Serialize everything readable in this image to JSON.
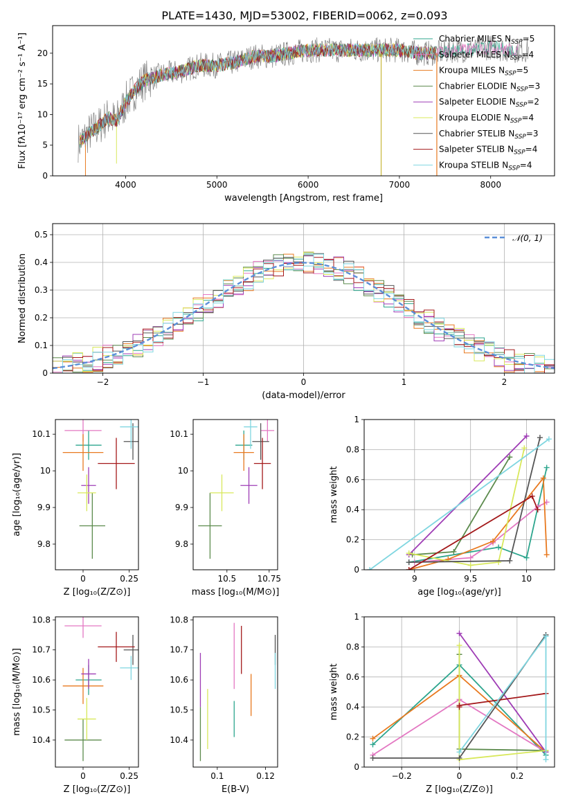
{
  "title": "PLATE=1430, MJD=53002, FIBERID=0062, z=0.093",
  "models": [
    {
      "name": "Chabrier MILES",
      "nssp": "5",
      "color": "#2ca58d"
    },
    {
      "name": "Salpeter MILES",
      "nssp": "4",
      "color": "#e377c2"
    },
    {
      "name": "Kroupa MILES",
      "nssp": "5",
      "color": "#e8791f"
    },
    {
      "name": "Chabrier ELODIE",
      "nssp": "3",
      "color": "#5b8a4c"
    },
    {
      "name": "Salpeter ELODIE",
      "nssp": "2",
      "color": "#9e3bb5"
    },
    {
      "name": "Kroupa ELODIE",
      "nssp": "4",
      "color": "#d8e85a"
    },
    {
      "name": "Chabrier STELIB",
      "nssp": "3",
      "color": "#555555"
    },
    {
      "name": "Salpeter STELIB",
      "nssp": "4",
      "color": "#a3181a"
    },
    {
      "name": "Kroupa STELIB",
      "nssp": "4",
      "color": "#7fd6e0"
    }
  ],
  "nssp_prefix": "N",
  "nssp_sub": "SSP",
  "chart_data": [
    {
      "id": "spectrum",
      "type": "line",
      "xlabel": "wavelength [Angstrom, rest frame]",
      "ylabel": "Flux [fλ10⁻¹⁷ erg cm⁻² s⁻¹ A⁻¹]",
      "xlim": [
        3200,
        8700
      ],
      "ylim": [
        0,
        24.5
      ],
      "xticks": [
        4000,
        5000,
        6000,
        7000,
        8000
      ],
      "yticks": [
        0,
        5,
        10,
        15,
        20
      ],
      "continuum": {
        "x": [
          3500,
          3600,
          3700,
          3800,
          3900,
          4000,
          4100,
          4200,
          4300,
          4400,
          4600,
          4800,
          5000,
          5200,
          5400,
          5600,
          5800,
          6000,
          6200,
          6400,
          6600,
          6800,
          7000,
          7200,
          7400,
          7600,
          7800,
          8000,
          8200,
          8400
        ],
        "y": [
          5.5,
          7,
          8,
          9.5,
          9,
          12,
          14,
          15.5,
          16,
          16.5,
          17,
          18,
          18,
          18.5,
          19.5,
          19.5,
          20,
          20.5,
          20.5,
          20.5,
          20.5,
          20.5,
          20.5,
          20,
          20,
          20.5,
          20.5,
          21,
          20.5,
          20.5
        ]
      }
    },
    {
      "id": "residuals",
      "type": "histogram",
      "xlabel": "(data-model)/error",
      "ylabel": "Normed distribution",
      "xlim": [
        -2.5,
        2.5
      ],
      "ylim": [
        0,
        0.54
      ],
      "xticks": [
        -2,
        -1,
        0,
        1,
        2
      ],
      "yticks": [
        0,
        0.1,
        0.2,
        0.3,
        0.4,
        0.5
      ],
      "legend": "𝒩(0, 1)",
      "legend_position": "top-right",
      "grid": true
    },
    {
      "id": "age-vs-Z",
      "type": "errorbar",
      "xlabel": "Z [log₁₀(Z/Z⊙)]",
      "ylabel": "age  [log₁₀(age/yr)]",
      "xlim": [
        -0.15,
        0.3
      ],
      "ylim": [
        9.73,
        10.14
      ],
      "xticks": [
        0,
        0.25
      ],
      "yticks": [
        9.8,
        9.9,
        10,
        10.1
      ],
      "points": [
        {
          "model": 0,
          "x": 0.03,
          "xerr": 0.07,
          "y": 10.07,
          "yerr": 0.04
        },
        {
          "model": 1,
          "x": 0.0,
          "xerr": 0.1,
          "y": 10.11,
          "yerr": 0.03
        },
        {
          "model": 2,
          "x": 0.0,
          "xerr": 0.11,
          "y": 10.05,
          "yerr": 0.05
        },
        {
          "model": 3,
          "x": 0.05,
          "xerr": 0.07,
          "y": 9.85,
          "yerr": 0.09
        },
        {
          "model": 4,
          "x": 0.03,
          "xerr": 0.04,
          "y": 9.96,
          "yerr": 0.05
        },
        {
          "model": 5,
          "x": 0.02,
          "xerr": 0.05,
          "y": 9.94,
          "yerr": 0.05
        },
        {
          "model": 6,
          "x": 0.27,
          "xerr": 0.05,
          "y": 10.08,
          "yerr": 0.05
        },
        {
          "model": 7,
          "x": 0.18,
          "xerr": 0.1,
          "y": 10.02,
          "yerr": 0.07
        },
        {
          "model": 8,
          "x": 0.26,
          "xerr": 0.06,
          "y": 10.12,
          "yerr": 0.06
        }
      ]
    },
    {
      "id": "age-vs-mass",
      "type": "errorbar",
      "xlabel": "mass [log₁₀(M/M⊙)]",
      "ylabel": "",
      "xlim": [
        10.3,
        10.8
      ],
      "ylim": [
        9.73,
        10.14
      ],
      "xticks": [
        10.5,
        10.75
      ],
      "yticks": [
        9.8,
        9.9,
        10,
        10.1
      ],
      "points": [
        {
          "model": 0,
          "x": 10.6,
          "xerr": 0.05,
          "y": 10.07,
          "yerr": 0.04
        },
        {
          "model": 1,
          "x": 10.74,
          "xerr": 0.04,
          "y": 10.11,
          "yerr": 0.03
        },
        {
          "model": 2,
          "x": 10.6,
          "xerr": 0.06,
          "y": 10.05,
          "yerr": 0.05
        },
        {
          "model": 3,
          "x": 10.4,
          "xerr": 0.07,
          "y": 9.85,
          "yerr": 0.09
        },
        {
          "model": 4,
          "x": 10.63,
          "xerr": 0.05,
          "y": 9.96,
          "yerr": 0.05
        },
        {
          "model": 5,
          "x": 10.47,
          "xerr": 0.07,
          "y": 9.94,
          "yerr": 0.05
        },
        {
          "model": 6,
          "x": 10.7,
          "xerr": 0.05,
          "y": 10.08,
          "yerr": 0.05
        },
        {
          "model": 7,
          "x": 10.71,
          "xerr": 0.05,
          "y": 10.02,
          "yerr": 0.07
        },
        {
          "model": 8,
          "x": 10.64,
          "xerr": 0.04,
          "y": 10.12,
          "yerr": 0.06
        }
      ]
    },
    {
      "id": "weight-vs-age",
      "type": "line",
      "xlabel": "age  [log₁₀(age/yr)]",
      "ylabel": "mass weight",
      "xlim": [
        8.55,
        10.25
      ],
      "ylim": [
        0,
        1
      ],
      "xticks": [
        9,
        9.5,
        10
      ],
      "yticks": [
        0,
        0.2,
        0.4,
        0.6,
        0.8,
        1
      ],
      "grid": true,
      "series": [
        {
          "model": 0,
          "x": [
            8.95,
            9.75,
            10.0,
            10.18
          ],
          "y": [
            0.05,
            0.15,
            0.08,
            0.68
          ]
        },
        {
          "model": 1,
          "x": [
            9.0,
            9.5,
            9.7,
            10.1,
            10.18
          ],
          "y": [
            0.05,
            0.08,
            0.18,
            0.42,
            0.45
          ]
        },
        {
          "model": 2,
          "x": [
            8.95,
            9.3,
            9.7,
            10.15,
            10.18
          ],
          "y": [
            0.0,
            0.07,
            0.19,
            0.61,
            0.1
          ]
        },
        {
          "model": 3,
          "x": [
            8.98,
            9.35,
            9.85
          ],
          "y": [
            0.1,
            0.12,
            0.75
          ]
        },
        {
          "model": 4,
          "x": [
            8.95,
            10.0
          ],
          "y": [
            0.1,
            0.89
          ]
        },
        {
          "model": 5,
          "x": [
            8.95,
            9.5,
            9.75,
            9.98
          ],
          "y": [
            0.11,
            0.03,
            0.05,
            0.81
          ]
        },
        {
          "model": 6,
          "x": [
            8.95,
            9.85,
            10.12
          ],
          "y": [
            0.05,
            0.06,
            0.88
          ]
        },
        {
          "model": 7,
          "x": [
            8.95,
            10.05,
            10.1
          ],
          "y": [
            0.0,
            0.49,
            0.4
          ]
        },
        {
          "model": 8,
          "x": [
            8.6,
            10.2
          ],
          "y": [
            0.0,
            0.87
          ]
        }
      ]
    },
    {
      "id": "mass-vs-Z",
      "type": "errorbar",
      "xlabel": "Z [log₁₀(Z/Z⊙)]",
      "ylabel": "mass [log₁₀(M/M⊙)]",
      "xlim": [
        -0.15,
        0.3
      ],
      "ylim": [
        10.31,
        10.81
      ],
      "xticks": [
        0,
        0.25
      ],
      "yticks": [
        10.4,
        10.5,
        10.6,
        10.7,
        10.8
      ],
      "points": [
        {
          "model": 0,
          "x": 0.03,
          "xerr": 0.07,
          "y": 10.6,
          "yerr": 0.05
        },
        {
          "model": 1,
          "x": 0.0,
          "xerr": 0.1,
          "y": 10.78,
          "yerr": 0.04
        },
        {
          "model": 2,
          "x": 0.0,
          "xerr": 0.11,
          "y": 10.58,
          "yerr": 0.06
        },
        {
          "model": 3,
          "x": 0.0,
          "xerr": 0.1,
          "y": 10.4,
          "yerr": 0.07
        },
        {
          "model": 4,
          "x": 0.03,
          "xerr": 0.04,
          "y": 10.62,
          "yerr": 0.05
        },
        {
          "model": 5,
          "x": 0.02,
          "xerr": 0.05,
          "y": 10.47,
          "yerr": 0.07
        },
        {
          "model": 6,
          "x": 0.27,
          "xerr": 0.05,
          "y": 10.7,
          "yerr": 0.05
        },
        {
          "model": 7,
          "x": 0.18,
          "xerr": 0.1,
          "y": 10.71,
          "yerr": 0.05
        },
        {
          "model": 8,
          "x": 0.26,
          "xerr": 0.06,
          "y": 10.64,
          "yerr": 0.04
        }
      ]
    },
    {
      "id": "mass-vs-ebv",
      "type": "errorbar",
      "xlabel": "E(B-V)",
      "ylabel": "",
      "xlim": [
        0.09,
        0.125
      ],
      "ylim": [
        10.31,
        10.81
      ],
      "xticks": [
        0.1,
        0.12
      ],
      "yticks": [
        10.4,
        10.5,
        10.6,
        10.7,
        10.8
      ],
      "points": [
        {
          "model": 0,
          "x": 0.107,
          "xerr": 0,
          "y": 10.47,
          "yerr": 0.06
        },
        {
          "model": 1,
          "x": 0.107,
          "xerr": 0,
          "y": 10.68,
          "yerr": 0.11
        },
        {
          "model": 2,
          "x": 0.114,
          "xerr": 0,
          "y": 10.55,
          "yerr": 0.07
        },
        {
          "model": 3,
          "x": 0.093,
          "xerr": 0,
          "y": 10.42,
          "yerr": 0.09
        },
        {
          "model": 4,
          "x": 0.093,
          "xerr": 0,
          "y": 10.6,
          "yerr": 0.09
        },
        {
          "model": 5,
          "x": 0.096,
          "xerr": 0,
          "y": 10.47,
          "yerr": 0.1
        },
        {
          "model": 6,
          "x": 0.124,
          "xerr": 0,
          "y": 10.7,
          "yerr": 0.05
        },
        {
          "model": 7,
          "x": 0.11,
          "xerr": 0,
          "y": 10.7,
          "yerr": 0.08
        },
        {
          "model": 8,
          "x": 0.124,
          "xerr": 0,
          "y": 10.63,
          "yerr": 0.06
        }
      ]
    },
    {
      "id": "weight-vs-Z",
      "type": "line",
      "xlabel": "Z [log₁₀(Z/Z⊙)]",
      "ylabel": "mass weight",
      "xlim": [
        -0.33,
        0.33
      ],
      "ylim": [
        0,
        1
      ],
      "xticks": [
        -0.2,
        0,
        0.2
      ],
      "yticks": [
        0,
        0.2,
        0.4,
        0.6,
        0.8,
        1
      ],
      "grid": true,
      "series": [
        {
          "model": 0,
          "x": [
            -0.3,
            0.0,
            0.3
          ],
          "y": [
            0.15,
            0.68,
            0.08
          ]
        },
        {
          "model": 1,
          "x": [
            -0.3,
            0.0,
            0.3
          ],
          "y": [
            0.08,
            0.45,
            0.1
          ]
        },
        {
          "model": 2,
          "x": [
            -0.3,
            0.0,
            0.3
          ],
          "y": [
            0.19,
            0.61,
            0.1
          ]
        },
        {
          "model": 3,
          "x": [
            0.0,
            0.0,
            0.3
          ],
          "y": [
            0.75,
            0.12,
            0.11
          ]
        },
        {
          "model": 4,
          "x": [
            0.0,
            0.3
          ],
          "y": [
            0.89,
            0.1
          ]
        },
        {
          "model": 5,
          "x": [
            0.0,
            0.0,
            0.3
          ],
          "y": [
            0.81,
            0.05,
            0.11
          ]
        },
        {
          "model": 6,
          "x": [
            -0.3,
            0.0,
            0.3
          ],
          "y": [
            0.06,
            0.06,
            0.88
          ]
        },
        {
          "model": 7,
          "x": [
            0.0,
            0.0,
            0.3
          ],
          "y": [
            0.4,
            0.41,
            0.49
          ]
        },
        {
          "model": 8,
          "x": [
            0.0,
            0.3,
            0.3
          ],
          "y": [
            0.1,
            0.87,
            0.05
          ]
        }
      ]
    }
  ]
}
